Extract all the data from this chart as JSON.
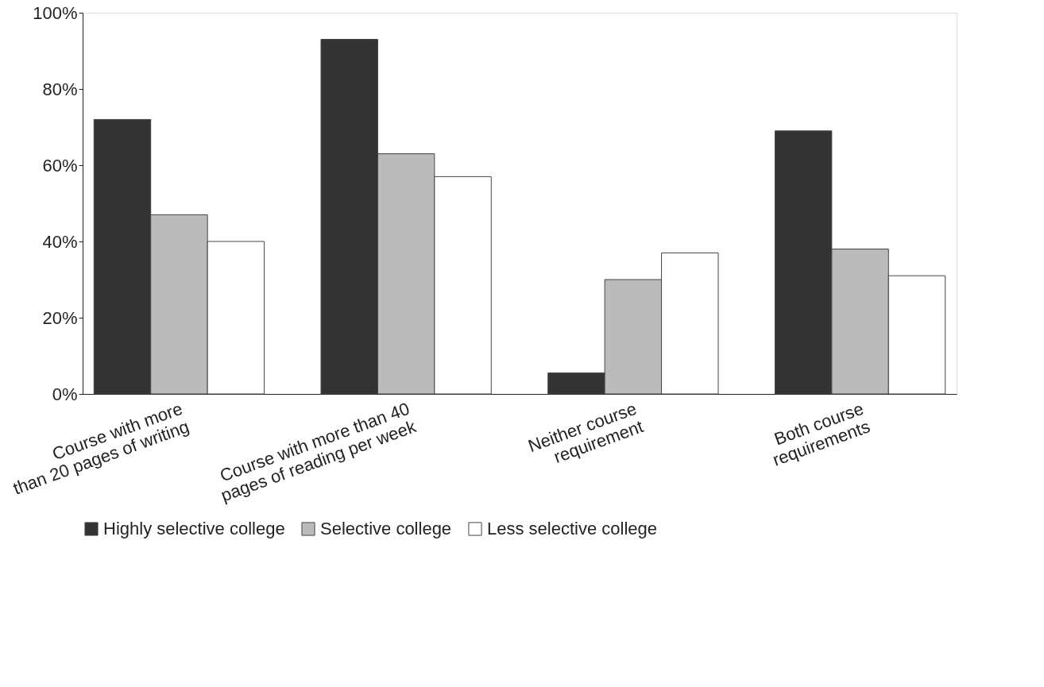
{
  "chart_data": {
    "type": "bar",
    "categories": [
      "Course with more\nthan 20 pages of writing",
      "Course with more than 40\npages of reading per week",
      "Neither course\nrequirement",
      "Both course\nrequirements"
    ],
    "series": [
      {
        "name": "Highly selective college",
        "color": "#333333",
        "values": [
          72,
          93,
          5.5,
          69
        ]
      },
      {
        "name": "Selective college",
        "color": "#bbbbbb",
        "values": [
          47,
          63,
          30,
          38
        ]
      },
      {
        "name": "Less selective college",
        "color": "#ffffff",
        "values": [
          40,
          57,
          37,
          31
        ]
      }
    ],
    "ylim": [
      0,
      100
    ],
    "yticks": [
      {
        "value": 0,
        "label": "0%"
      },
      {
        "value": 20,
        "label": "20%"
      },
      {
        "value": 40,
        "label": "40%"
      },
      {
        "value": 60,
        "label": "60%"
      },
      {
        "value": 80,
        "label": "80%"
      },
      {
        "value": 100,
        "label": "100%"
      }
    ],
    "grid": false,
    "legend": "bottom"
  }
}
